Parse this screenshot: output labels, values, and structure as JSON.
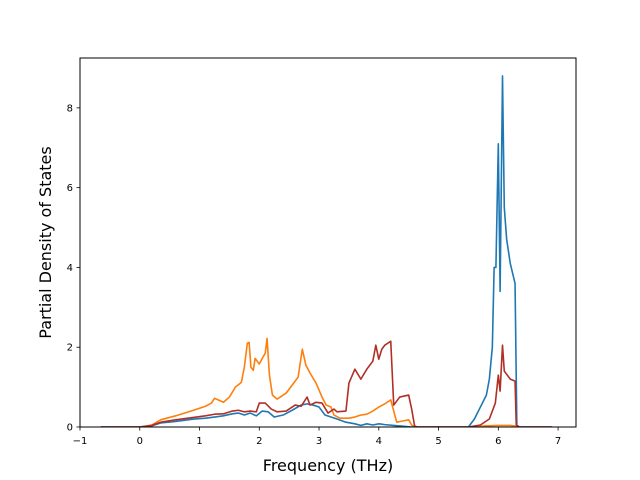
{
  "chart_data": {
    "type": "line",
    "title": "",
    "xlabel": "Frequency (THz)",
    "ylabel": "Partial Density of States",
    "xlim": [
      -1,
      7.3
    ],
    "ylim": [
      0,
      9.25
    ],
    "xticks": [
      -1,
      0,
      1,
      2,
      3,
      4,
      5,
      6,
      7
    ],
    "yticks": [
      0,
      2,
      4,
      6,
      8
    ],
    "grid": false,
    "legend": "none",
    "series": [
      {
        "color": "#ff7f0e",
        "points": [
          [
            -0.65,
            0
          ],
          [
            0.0,
            0
          ],
          [
            0.2,
            0.05
          ],
          [
            0.35,
            0.18
          ],
          [
            0.6,
            0.28
          ],
          [
            0.9,
            0.42
          ],
          [
            1.1,
            0.52
          ],
          [
            1.2,
            0.6
          ],
          [
            1.25,
            0.72
          ],
          [
            1.4,
            0.62
          ],
          [
            1.5,
            0.75
          ],
          [
            1.6,
            1.0
          ],
          [
            1.7,
            1.12
          ],
          [
            1.75,
            1.5
          ],
          [
            1.8,
            2.1
          ],
          [
            1.83,
            2.12
          ],
          [
            1.86,
            1.5
          ],
          [
            1.9,
            1.42
          ],
          [
            1.93,
            1.72
          ],
          [
            2.0,
            1.58
          ],
          [
            2.05,
            1.72
          ],
          [
            2.1,
            1.85
          ],
          [
            2.13,
            2.22
          ],
          [
            2.17,
            1.3
          ],
          [
            2.22,
            0.8
          ],
          [
            2.3,
            0.7
          ],
          [
            2.45,
            0.85
          ],
          [
            2.55,
            1.05
          ],
          [
            2.65,
            1.25
          ],
          [
            2.72,
            1.95
          ],
          [
            2.78,
            1.55
          ],
          [
            2.85,
            1.35
          ],
          [
            2.95,
            1.1
          ],
          [
            3.05,
            0.75
          ],
          [
            3.12,
            0.55
          ],
          [
            3.2,
            0.5
          ],
          [
            3.25,
            0.3
          ],
          [
            3.35,
            0.22
          ],
          [
            3.5,
            0.22
          ],
          [
            3.6,
            0.25
          ],
          [
            3.7,
            0.3
          ],
          [
            3.8,
            0.32
          ],
          [
            3.9,
            0.4
          ],
          [
            4.0,
            0.5
          ],
          [
            4.1,
            0.58
          ],
          [
            4.2,
            0.68
          ],
          [
            4.3,
            0.12
          ],
          [
            4.4,
            0.15
          ],
          [
            4.5,
            0.18
          ],
          [
            4.55,
            0.05
          ],
          [
            4.6,
            0
          ],
          [
            5.5,
            0
          ],
          [
            5.8,
            0.03
          ],
          [
            6.0,
            0.04
          ],
          [
            6.2,
            0.04
          ],
          [
            6.3,
            0.02
          ],
          [
            6.35,
            0
          ],
          [
            6.9,
            0
          ]
        ]
      },
      {
        "color": "#1f77b4",
        "points": [
          [
            -0.65,
            0
          ],
          [
            0.0,
            0
          ],
          [
            0.2,
            0.03
          ],
          [
            0.35,
            0.1
          ],
          [
            0.6,
            0.14
          ],
          [
            0.9,
            0.2
          ],
          [
            1.1,
            0.22
          ],
          [
            1.25,
            0.25
          ],
          [
            1.4,
            0.28
          ],
          [
            1.55,
            0.33
          ],
          [
            1.65,
            0.35
          ],
          [
            1.75,
            0.3
          ],
          [
            1.85,
            0.35
          ],
          [
            1.95,
            0.28
          ],
          [
            2.05,
            0.4
          ],
          [
            2.15,
            0.38
          ],
          [
            2.25,
            0.25
          ],
          [
            2.4,
            0.3
          ],
          [
            2.55,
            0.42
          ],
          [
            2.7,
            0.55
          ],
          [
            2.8,
            0.58
          ],
          [
            2.9,
            0.55
          ],
          [
            3.0,
            0.5
          ],
          [
            3.1,
            0.3
          ],
          [
            3.2,
            0.25
          ],
          [
            3.3,
            0.2
          ],
          [
            3.45,
            0.12
          ],
          [
            3.6,
            0.08
          ],
          [
            3.7,
            0.04
          ],
          [
            3.8,
            0.08
          ],
          [
            3.9,
            0.05
          ],
          [
            4.0,
            0.08
          ],
          [
            4.1,
            0.06
          ],
          [
            4.25,
            0.04
          ],
          [
            4.4,
            0.02
          ],
          [
            4.55,
            0
          ],
          [
            5.5,
            0
          ],
          [
            5.6,
            0.2
          ],
          [
            5.7,
            0.5
          ],
          [
            5.8,
            0.8
          ],
          [
            5.85,
            1.2
          ],
          [
            5.9,
            2.0
          ],
          [
            5.93,
            4.0
          ],
          [
            5.96,
            4.0
          ],
          [
            6.0,
            7.1
          ],
          [
            6.03,
            3.4
          ],
          [
            6.07,
            8.8
          ],
          [
            6.1,
            5.5
          ],
          [
            6.14,
            4.7
          ],
          [
            6.2,
            4.1
          ],
          [
            6.28,
            3.6
          ],
          [
            6.31,
            0.05
          ],
          [
            6.35,
            0
          ],
          [
            6.9,
            0
          ]
        ]
      },
      {
        "color": "#b03026",
        "points": [
          [
            -0.65,
            0
          ],
          [
            0.0,
            0
          ],
          [
            0.2,
            0.04
          ],
          [
            0.35,
            0.12
          ],
          [
            0.6,
            0.18
          ],
          [
            0.9,
            0.24
          ],
          [
            1.1,
            0.28
          ],
          [
            1.25,
            0.32
          ],
          [
            1.4,
            0.33
          ],
          [
            1.55,
            0.4
          ],
          [
            1.65,
            0.42
          ],
          [
            1.75,
            0.38
          ],
          [
            1.85,
            0.4
          ],
          [
            1.95,
            0.38
          ],
          [
            2.0,
            0.6
          ],
          [
            2.1,
            0.6
          ],
          [
            2.2,
            0.45
          ],
          [
            2.3,
            0.38
          ],
          [
            2.45,
            0.4
          ],
          [
            2.6,
            0.55
          ],
          [
            2.7,
            0.52
          ],
          [
            2.8,
            0.75
          ],
          [
            2.85,
            0.55
          ],
          [
            2.95,
            0.62
          ],
          [
            3.05,
            0.6
          ],
          [
            3.15,
            0.35
          ],
          [
            3.25,
            0.45
          ],
          [
            3.3,
            0.38
          ],
          [
            3.45,
            0.4
          ],
          [
            3.5,
            1.1
          ],
          [
            3.6,
            1.45
          ],
          [
            3.7,
            1.2
          ],
          [
            3.8,
            1.45
          ],
          [
            3.9,
            1.65
          ],
          [
            3.95,
            2.05
          ],
          [
            4.0,
            1.7
          ],
          [
            4.05,
            1.95
          ],
          [
            4.1,
            2.05
          ],
          [
            4.2,
            2.15
          ],
          [
            4.25,
            0.55
          ],
          [
            4.35,
            0.75
          ],
          [
            4.5,
            0.8
          ],
          [
            4.55,
            0.45
          ],
          [
            4.6,
            0.02
          ],
          [
            4.65,
            0
          ],
          [
            5.5,
            0
          ],
          [
            5.7,
            0.05
          ],
          [
            5.85,
            0.2
          ],
          [
            5.95,
            0.6
          ],
          [
            6.0,
            1.3
          ],
          [
            6.03,
            0.9
          ],
          [
            6.07,
            2.05
          ],
          [
            6.1,
            1.4
          ],
          [
            6.2,
            1.2
          ],
          [
            6.28,
            1.15
          ],
          [
            6.3,
            0.05
          ],
          [
            6.35,
            0
          ],
          [
            6.9,
            0
          ]
        ]
      }
    ]
  }
}
